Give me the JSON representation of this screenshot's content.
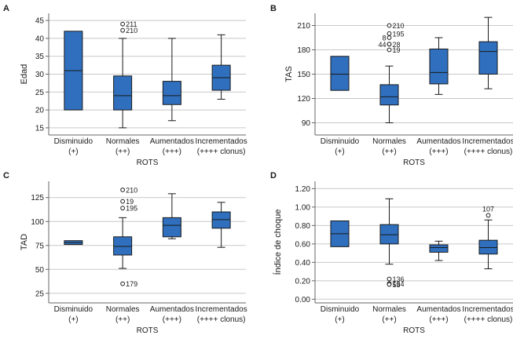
{
  "chart_data": [
    {
      "type": "boxplot",
      "panel_letter": "A",
      "ylabel": "Edad",
      "xlabel": "ROTS",
      "ylim": [
        13,
        47
      ],
      "yticks": [
        15,
        20,
        25,
        30,
        35,
        40,
        45
      ],
      "categories": [
        {
          "line1": "Disminuido",
          "line2": "(+)"
        },
        {
          "line1": "Normales",
          "line2": "(++)"
        },
        {
          "line1": "Aumentados",
          "line2": "(+++)"
        },
        {
          "line1": "Incrementados",
          "line2": "(++++ clonus)"
        }
      ],
      "boxes": [
        {
          "min": 20,
          "q1": 20,
          "median": 31,
          "q3": 42,
          "max": 42
        },
        {
          "min": 15,
          "q1": 20,
          "median": 24,
          "q3": 29.5,
          "max": 40
        },
        {
          "min": 17,
          "q1": 21.5,
          "median": 24,
          "q3": 28,
          "max": 40
        },
        {
          "min": 23,
          "q1": 25.5,
          "median": 29,
          "q3": 32.5,
          "max": 41
        }
      ],
      "outliers": [
        {
          "category": 1,
          "value": 44,
          "label": "211"
        },
        {
          "category": 1,
          "value": 44,
          "label": "210",
          "stack": 1
        }
      ]
    },
    {
      "type": "boxplot",
      "panel_letter": "B",
      "ylabel": "TAS",
      "xlabel": "ROTS",
      "ylim": [
        75,
        225
      ],
      "yticks": [
        90,
        120,
        150,
        180,
        210
      ],
      "categories": [
        {
          "line1": "Disminuido",
          "line2": "(+)"
        },
        {
          "line1": "Normales",
          "line2": "(++)"
        },
        {
          "line1": "Aumentados",
          "line2": "(+++)"
        },
        {
          "line1": "Incrementados",
          "line2": "(++++ clonus)"
        }
      ],
      "boxes": [
        {
          "min": 130,
          "q1": 130,
          "median": 150,
          "q3": 172,
          "max": 172
        },
        {
          "min": 90,
          "q1": 112,
          "median": 122,
          "q3": 137,
          "max": 160
        },
        {
          "min": 125,
          "q1": 138,
          "median": 152,
          "q3": 181,
          "max": 195
        },
        {
          "min": 132,
          "q1": 150,
          "median": 178,
          "q3": 190,
          "max": 220
        }
      ],
      "outliers": [
        {
          "category": 1,
          "value": 210,
          "label": "210"
        },
        {
          "category": 1,
          "value": 200,
          "label": "195"
        },
        {
          "category": 1,
          "value": 195,
          "label": "8",
          "side": "left"
        },
        {
          "category": 1,
          "value": 187,
          "label": "28"
        },
        {
          "category": 1,
          "value": 187,
          "label": "44",
          "side": "left"
        },
        {
          "category": 1,
          "value": 180,
          "label": "19"
        }
      ]
    },
    {
      "type": "boxplot",
      "panel_letter": "C",
      "ylabel": "TAD",
      "xlabel": "ROTS",
      "ylim": [
        15,
        142
      ],
      "yticks": [
        25,
        50,
        75,
        100,
        125
      ],
      "categories": [
        {
          "line1": "Disminuido",
          "line2": "(+)"
        },
        {
          "line1": "Normales",
          "line2": "(++)"
        },
        {
          "line1": "Aumentados",
          "line2": "(+++)"
        },
        {
          "line1": "Incrementados",
          "line2": "(++++ clonus)"
        }
      ],
      "boxes": [
        {
          "min": 76,
          "q1": 76,
          "median": 78,
          "q3": 80,
          "max": 80
        },
        {
          "min": 51,
          "q1": 65,
          "median": 74,
          "q3": 84,
          "max": 104
        },
        {
          "min": 82,
          "q1": 84,
          "median": 96,
          "q3": 104,
          "max": 129
        },
        {
          "min": 73,
          "q1": 93,
          "median": 102,
          "q3": 110,
          "max": 120
        }
      ],
      "outliers": [
        {
          "category": 1,
          "value": 133,
          "label": "210"
        },
        {
          "category": 1,
          "value": 121,
          "label": "19"
        },
        {
          "category": 1,
          "value": 114,
          "label": "195"
        },
        {
          "category": 1,
          "value": 35,
          "label": "179"
        }
      ]
    },
    {
      "type": "boxplot",
      "panel_letter": "D",
      "ylabel": "Índice de choque",
      "xlabel": "ROTS",
      "ylim": [
        -0.04,
        1.28
      ],
      "yticks": [
        "0.00",
        "0.20",
        "0.40",
        "0.60",
        "0.80",
        "1.00",
        "1.20"
      ],
      "categories": [
        {
          "line1": "Disminuido",
          "line2": "(+)"
        },
        {
          "line1": "Normales",
          "line2": "(++)"
        },
        {
          "line1": "Aumentados",
          "line2": "(+++)"
        },
        {
          "line1": "Incrementados",
          "line2": "(++++ clonus)"
        }
      ],
      "boxes": [
        {
          "min": 0.57,
          "q1": 0.57,
          "median": 0.71,
          "q3": 0.85,
          "max": 0.85
        },
        {
          "min": 0.38,
          "q1": 0.6,
          "median": 0.7,
          "q3": 0.81,
          "max": 1.09
        },
        {
          "min": 0.42,
          "q1": 0.51,
          "median": 0.56,
          "q3": 0.59,
          "max": 0.63
        },
        {
          "min": 0.33,
          "q1": 0.49,
          "median": 0.56,
          "q3": 0.64,
          "max": 0.86
        }
      ],
      "outliers": [
        {
          "category": 3,
          "value": 0.91,
          "label": "107",
          "labelPos": "above"
        },
        {
          "category": 1,
          "value": 0.22,
          "label": "136"
        },
        {
          "category": 1,
          "value": 0.17,
          "label": "164"
        },
        {
          "category": 1,
          "value": 0.16,
          "label": "53"
        }
      ]
    }
  ],
  "colors": {
    "box_fill": "#2f6fbd",
    "box_stroke": "#1a1a1a",
    "grid": "#c8c8c8",
    "axis": "#666666",
    "text": "#1a1a1a"
  }
}
